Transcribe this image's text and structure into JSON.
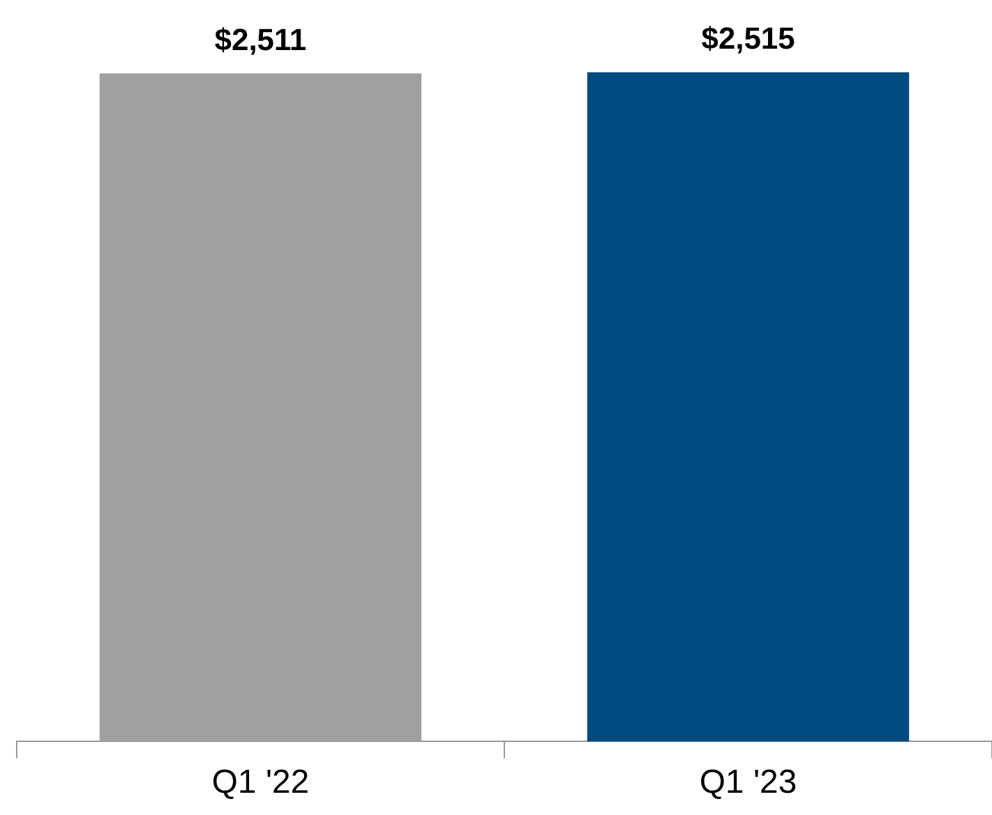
{
  "chart_data": {
    "type": "bar",
    "categories": [
      "Q1 '22",
      "Q1 '23"
    ],
    "values": [
      2511,
      2515
    ],
    "colors": [
      "#a0a0a0",
      "#004a80"
    ],
    "value_labels": [
      "$2,511",
      "$2,515"
    ],
    "legend": false,
    "grid": false
  }
}
